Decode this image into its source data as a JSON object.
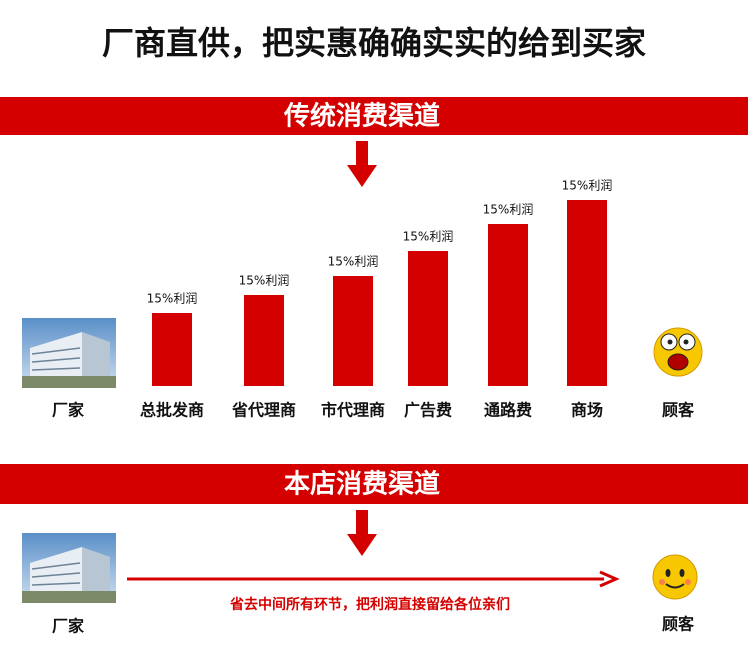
{
  "title": "厂商直供，把实惠确确实实的给到买家",
  "traditional": {
    "heading": "传统消费渠道",
    "factory": "厂家",
    "customer": "顾客"
  },
  "store": {
    "heading": "本店消费渠道",
    "factory": "厂家",
    "customer": "顾客",
    "note": "省去中间所有环节，把利润直接留给各位亲们"
  },
  "chart_data": {
    "type": "bar",
    "categories": [
      "总批发商",
      "省代理商",
      "市代理商",
      "广告费",
      "通路费",
      "商场"
    ],
    "values": [
      73,
      91,
      110,
      135,
      162,
      186
    ],
    "annotations": [
      "15%利润",
      "15%利润",
      "15%利润",
      "15%利润",
      "15%利润",
      "15%利润"
    ],
    "color": "#d40000",
    "ylim": [
      0,
      186
    ]
  }
}
